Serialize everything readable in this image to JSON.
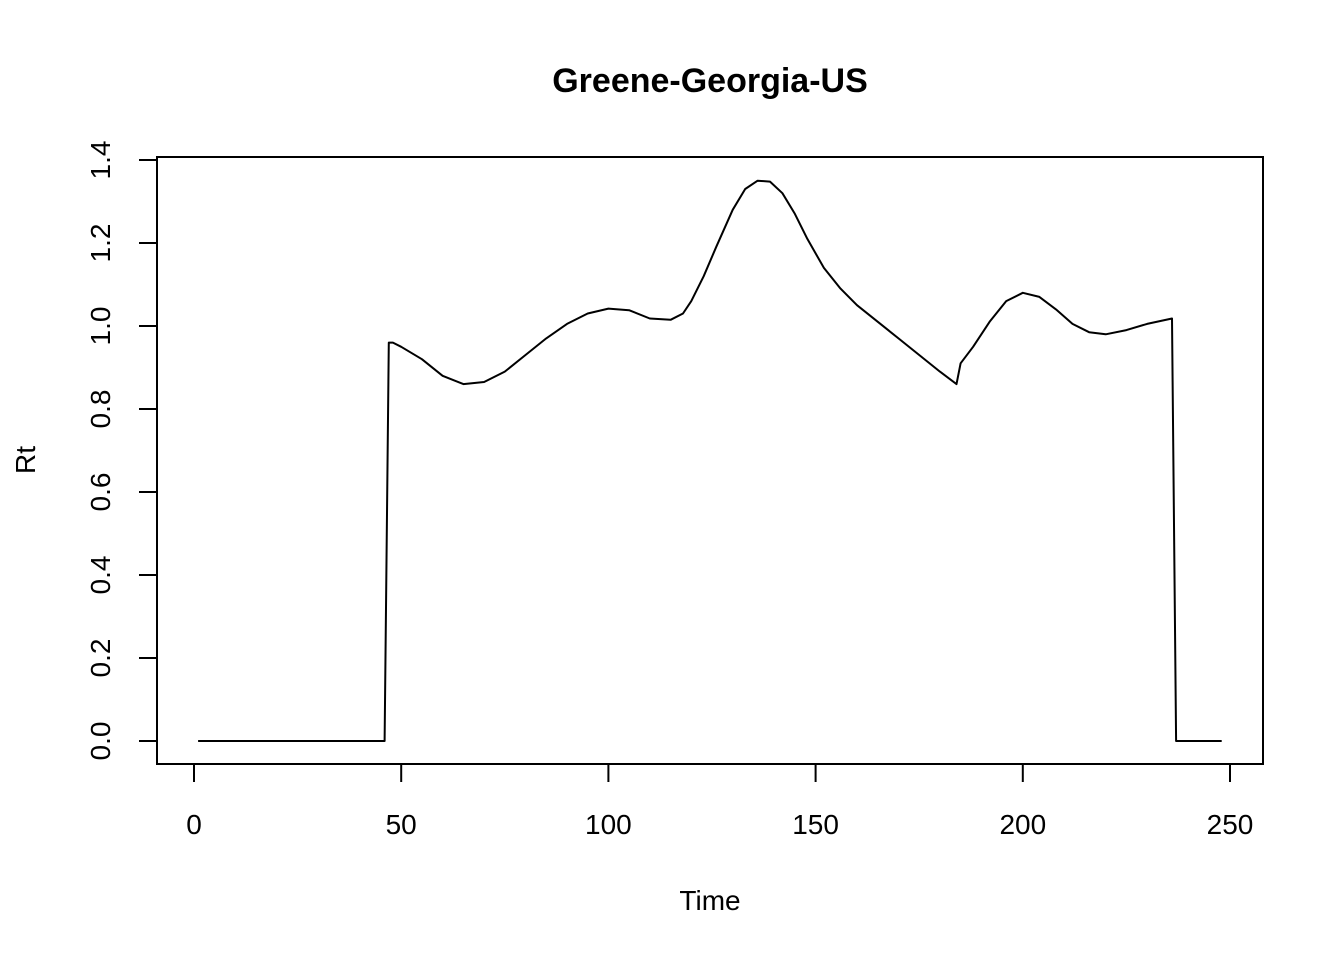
{
  "chart_data": {
    "type": "line",
    "title": "Greene-Georgia-US",
    "xlabel": "Time",
    "ylabel": "Rt",
    "xlim": [
      0,
      250
    ],
    "ylim": [
      0.0,
      1.4
    ],
    "x_ticks": [
      0,
      50,
      100,
      150,
      200,
      250
    ],
    "x_tick_labels": [
      "0",
      "50",
      "100",
      "150",
      "200",
      "250"
    ],
    "y_ticks": [
      0.0,
      0.2,
      0.4,
      0.6,
      0.8,
      1.0,
      1.2,
      1.4
    ],
    "y_tick_labels": [
      "0.0",
      "0.2",
      "0.4",
      "0.6",
      "0.8",
      "1.0",
      "1.2",
      "1.4"
    ],
    "grid": false,
    "legend": "none",
    "line_color": "#000000",
    "series": [
      {
        "x": [
          1,
          10,
          20,
          30,
          40,
          46,
          47,
          48,
          50,
          55,
          60,
          65,
          70,
          75,
          80,
          85,
          90,
          95,
          100,
          105,
          110,
          115,
          118,
          120,
          123,
          126,
          130,
          133,
          136,
          139,
          142,
          145,
          148,
          152,
          156,
          160,
          165,
          170,
          175,
          180,
          184,
          185,
          188,
          192,
          196,
          200,
          204,
          208,
          212,
          216,
          220,
          225,
          230,
          236,
          237,
          240,
          248
        ],
        "y": [
          0.0,
          0.0,
          0.0,
          0.0,
          0.0,
          0.0,
          0.96,
          0.96,
          0.95,
          0.92,
          0.88,
          0.86,
          0.865,
          0.89,
          0.93,
          0.97,
          1.005,
          1.03,
          1.042,
          1.038,
          1.018,
          1.015,
          1.03,
          1.06,
          1.12,
          1.19,
          1.28,
          1.33,
          1.35,
          1.348,
          1.32,
          1.27,
          1.21,
          1.14,
          1.09,
          1.05,
          1.01,
          0.97,
          0.93,
          0.89,
          0.86,
          0.91,
          0.95,
          1.01,
          1.06,
          1.08,
          1.07,
          1.04,
          1.005,
          0.985,
          0.98,
          0.99,
          1.005,
          1.018,
          0.0,
          0.0,
          0.0
        ]
      }
    ]
  }
}
